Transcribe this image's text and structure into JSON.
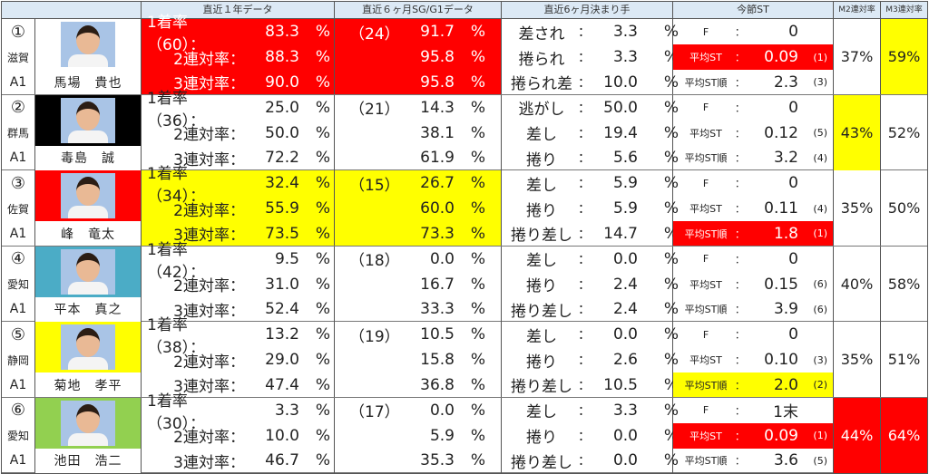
{
  "header": {
    "c1": "直近１年データ",
    "c2": "直近６ヶ月SG/G1データ",
    "c3": "直近6ヶ月決まり手",
    "c4": "今節ST",
    "c5": "M2連対率",
    "c6": "M3連対率"
  },
  "labels": {
    "win": "1着率",
    "r2": "2連対率：",
    "r3": "3連対率：",
    "pct": "%",
    "colon": "：",
    "f": "F",
    "avg": "平均ST",
    "avgc": "：",
    "rank": "平均ST順",
    "rankc": "："
  },
  "colors": {
    "red": "#ff0000",
    "yellow": "#ffff00"
  },
  "racers": [
    {
      "boat": "①",
      "pref": "滋賀",
      "cls": "A1",
      "name": "馬場　貴也",
      "boat_color": "#ffffff",
      "y1_count": "（60）：",
      "y1": [
        "83.3",
        "88.3",
        "90.0"
      ],
      "y1_hl": "red",
      "sg_count": "（24）",
      "sg": [
        "91.7",
        "95.8",
        "95.8"
      ],
      "km": [
        [
          "差され",
          "3.3"
        ],
        [
          "捲られ",
          "3.3"
        ],
        [
          "捲られ差",
          "10.0"
        ]
      ],
      "f": "0",
      "avg": "0.09",
      "avg_rank": "(1)",
      "st_rank": "2.3",
      "st_rank_rank": "(3)",
      "avg_hl": "red",
      "rank_hl": "",
      "m2": "37%",
      "m3": "59%",
      "m2_hl": "",
      "m3_hl": "yel"
    },
    {
      "boat": "②",
      "pref": "群馬",
      "cls": "A1",
      "name": "毒島　誠",
      "boat_color": "#000000",
      "y1_count": "（36）：",
      "y1": [
        "25.0",
        "50.0",
        "72.2"
      ],
      "y1_hl": "",
      "sg_count": "（21）",
      "sg": [
        "14.3",
        "38.1",
        "61.9"
      ],
      "km": [
        [
          "逃がし",
          "50.0"
        ],
        [
          "差し",
          "19.4"
        ],
        [
          "捲り",
          "5.6"
        ]
      ],
      "f": "0",
      "avg": "0.12",
      "avg_rank": "(5)",
      "st_rank": "3.2",
      "st_rank_rank": "(4)",
      "avg_hl": "",
      "rank_hl": "",
      "m2": "43%",
      "m3": "52%",
      "m2_hl": "yel",
      "m3_hl": ""
    },
    {
      "boat": "③",
      "pref": "佐賀",
      "cls": "A1",
      "name": "峰　竜太",
      "boat_color": "#ff0000",
      "y1_count": "（34）：",
      "y1": [
        "32.4",
        "55.9",
        "73.5"
      ],
      "y1_hl": "yel",
      "sg_count": "（15）",
      "sg": [
        "26.7",
        "60.0",
        "73.3"
      ],
      "km": [
        [
          "差し",
          "5.9"
        ],
        [
          "捲り",
          "5.9"
        ],
        [
          "捲り差し",
          "14.7"
        ]
      ],
      "f": "0",
      "avg": "0.11",
      "avg_rank": "(4)",
      "st_rank": "1.8",
      "st_rank_rank": "(1)",
      "avg_hl": "",
      "rank_hl": "red",
      "m2": "35%",
      "m3": "50%",
      "m2_hl": "",
      "m3_hl": ""
    },
    {
      "boat": "④",
      "pref": "愛知",
      "cls": "A1",
      "name": "平本　真之",
      "boat_color": "#4bacc6",
      "y1_count": "（42）：",
      "y1": [
        "9.5",
        "31.0",
        "52.4"
      ],
      "y1_hl": "",
      "sg_count": "（18）",
      "sg": [
        "0.0",
        "16.7",
        "33.3"
      ],
      "km": [
        [
          "差し",
          "0.0"
        ],
        [
          "捲り",
          "2.4"
        ],
        [
          "捲り差し",
          "2.4"
        ]
      ],
      "f": "0",
      "avg": "0.15",
      "avg_rank": "(6)",
      "st_rank": "3.9",
      "st_rank_rank": "(6)",
      "avg_hl": "",
      "rank_hl": "",
      "m2": "40%",
      "m3": "58%",
      "m2_hl": "",
      "m3_hl": ""
    },
    {
      "boat": "⑤",
      "pref": "静岡",
      "cls": "A1",
      "name": "菊地　孝平",
      "boat_color": "#ffff00",
      "y1_count": "（38）：",
      "y1": [
        "13.2",
        "29.0",
        "47.4"
      ],
      "y1_hl": "",
      "sg_count": "（19）",
      "sg": [
        "10.5",
        "15.8",
        "36.8"
      ],
      "km": [
        [
          "差し",
          "0.0"
        ],
        [
          "捲り",
          "2.6"
        ],
        [
          "捲り差し",
          "10.5"
        ]
      ],
      "f": "0",
      "avg": "0.10",
      "avg_rank": "(3)",
      "st_rank": "2.0",
      "st_rank_rank": "(2)",
      "avg_hl": "",
      "rank_hl": "yel",
      "m2": "35%",
      "m3": "51%",
      "m2_hl": "",
      "m3_hl": ""
    },
    {
      "boat": "⑥",
      "pref": "愛知",
      "cls": "A1",
      "name": "池田　浩二",
      "boat_color": "#92d050",
      "y1_count": "（30）：",
      "y1": [
        "3.3",
        "10.0",
        "46.7"
      ],
      "y1_hl": "",
      "sg_count": "（17）",
      "sg": [
        "0.0",
        "5.9",
        "35.3"
      ],
      "km": [
        [
          "差し",
          "3.3"
        ],
        [
          "捲り",
          "0.0"
        ],
        [
          "捲り差し",
          "0.0"
        ]
      ],
      "f": "1末",
      "avg": "0.09",
      "avg_rank": "(1)",
      "st_rank": "3.6",
      "st_rank_rank": "(5)",
      "avg_hl": "red",
      "rank_hl": "",
      "m2": "44%",
      "m3": "64%",
      "m2_hl": "red",
      "m3_hl": "red"
    }
  ]
}
